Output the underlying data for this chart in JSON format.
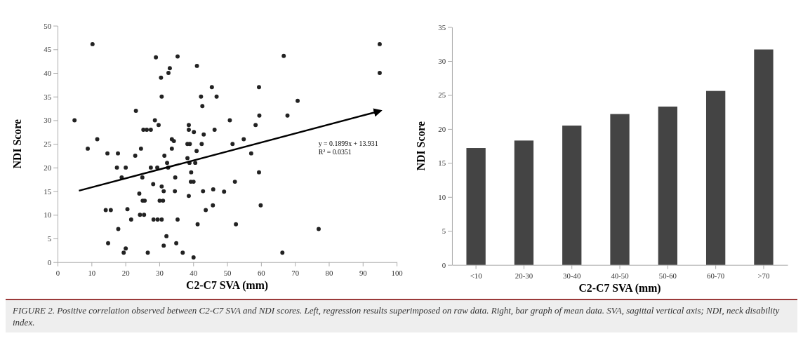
{
  "chart_data": [
    {
      "type": "scatter",
      "xlabel": "C2-C7 SVA (mm)",
      "ylabel": "NDI Score",
      "xlim": [
        0,
        100
      ],
      "ylim": [
        0,
        50
      ],
      "xticks": [
        0,
        10,
        20,
        30,
        40,
        50,
        60,
        70,
        80,
        90,
        100
      ],
      "yticks": [
        0,
        5,
        10,
        15,
        20,
        25,
        30,
        35,
        40,
        45,
        50
      ],
      "annotations": [
        "y = 0.1899x + 13.931",
        "R² = 0.0351"
      ],
      "series": [
        {
          "color": "#222222",
          "marker": "circle",
          "x": [
            5.0,
            10.3,
            8.9,
            11.7,
            14.7,
            14.2,
            15.7,
            14.9,
            17.8,
            17.5,
            18.9,
            17.9,
            20.1,
            20.6,
            20.1,
            19.5,
            21.7,
            23.1,
            22.9,
            24.6,
            24.1,
            25.0,
            24.3,
            25.5,
            25.1,
            25.7,
            25.3,
            26.3,
            27.5,
            27.5,
            28.2,
            28.3,
            26.6,
            29.0,
            28.7,
            29.8,
            29.4,
            30.5,
            30.7,
            32.7,
            33.1,
            35.4,
            30.7,
            31.3,
            30.1,
            31.1,
            29.5,
            30.7,
            31.5,
            32.3,
            32.6,
            32.1,
            31.3,
            33.7,
            34.3,
            33.7,
            34.7,
            34.6,
            35.4,
            35.0,
            36.9,
            38.7,
            38.3,
            39.0,
            38.7,
            38.7,
            38.3,
            39.4,
            39.3,
            40.1,
            38.9,
            40.6,
            40.2,
            41.0,
            41.1,
            41.3,
            40.1,
            42.3,
            42.7,
            42.5,
            43.1,
            42.9,
            43.7,
            45.5,
            46.9,
            46.3,
            45.9,
            45.8,
            49.1,
            50.8,
            51.6,
            52.3,
            52.6,
            54.9,
            57.1,
            58.4,
            59.4,
            59.5,
            59.4,
            59.9,
            66.7,
            66.3,
            67.8,
            70.8,
            77.0,
            95.0,
            95.0
          ],
          "values": [
            30,
            46.1,
            24,
            26,
            23,
            11,
            11,
            4,
            23,
            20,
            17.9,
            7,
            20,
            11.2,
            2.9,
            2,
            9,
            32,
            22.5,
            24,
            14.5,
            17.9,
            10,
            10,
            13,
            13,
            28,
            28,
            28,
            20,
            16.5,
            9,
            2,
            43.3,
            30,
            29,
            20,
            39,
            35,
            40,
            41,
            43.5,
            16,
            15,
            13,
            13,
            9,
            9,
            22.5,
            21,
            20,
            5.5,
            3.5,
            26,
            25.6,
            24,
            17.9,
            15,
            9,
            4,
            2,
            14,
            25,
            25,
            29,
            28,
            22,
            19,
            17,
            17,
            21,
            21,
            27.5,
            23.5,
            41.5,
            8,
            1,
            35,
            33,
            25,
            27,
            15,
            11,
            37,
            35,
            28,
            15.4,
            12,
            14.9,
            30,
            25,
            17,
            8,
            26,
            23,
            29,
            37,
            31,
            19,
            12,
            43.6,
            2,
            31,
            34.1,
            7,
            46.1,
            40
          ]
        },
        {
          "type": "line",
          "marker": "none",
          "color": "#000000",
          "x": [
            6.3,
            95.3
          ],
          "values": [
            15.1,
            32.0
          ]
        }
      ]
    },
    {
      "type": "bar",
      "xlabel": "C2-C7 SVA (mm)",
      "ylabel": "NDI Score",
      "categories": [
        "<10",
        "20-30",
        "30-40",
        "40-50",
        "50-60",
        "60-70",
        ">70"
      ],
      "values": [
        17.2,
        18.3,
        20.5,
        22.2,
        23.3,
        25.6,
        31.7
      ],
      "color": "#444444",
      "ylim": [
        0,
        35
      ],
      "yticks": [
        0,
        5,
        10,
        15,
        20,
        25,
        30,
        35
      ],
      "annotations": [
        "FIGURE 2. Positive correlation observed between C2-C7 SVA and NDI scores. Left, regression results superimposed on raw data. Right, bar graph of mean data. SVA, sagittal vertical axis; NDI, neck disability index."
      ]
    }
  ]
}
